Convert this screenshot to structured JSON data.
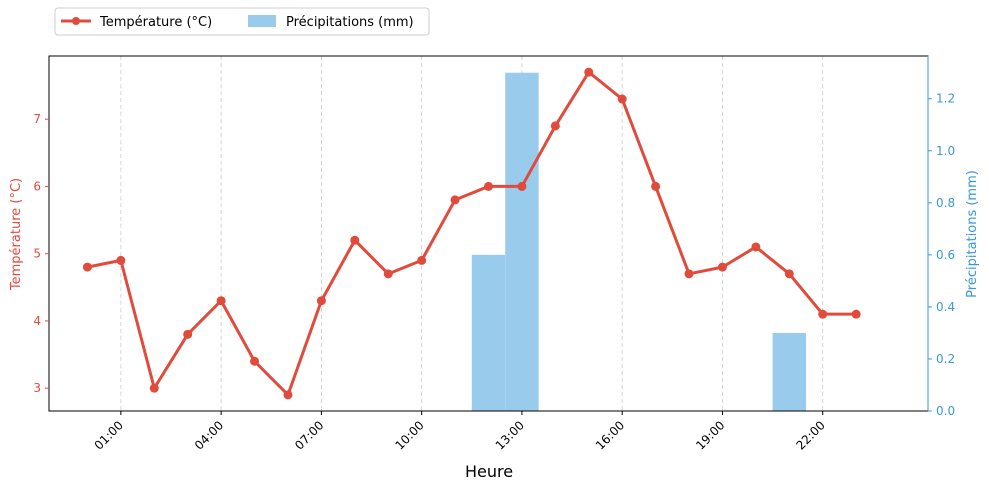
{
  "chart_data": {
    "type": "line",
    "xlabel": "Heure",
    "ylabel_left": "Température (°C)",
    "ylabel_right": "Précipitations (mm)",
    "x_tick_labels": [
      "01:00",
      "04:00",
      "07:00",
      "10:00",
      "13:00",
      "16:00",
      "19:00",
      "22:00"
    ],
    "x_tick_hours": [
      1,
      4,
      7,
      10,
      13,
      16,
      19,
      22
    ],
    "y_left_ticks": [
      3,
      4,
      5,
      6,
      7
    ],
    "y_right_ticks": [
      0.0,
      0.2,
      0.4,
      0.6,
      0.8,
      1.0,
      1.2
    ],
    "y_right_tick_labels": [
      "0.0",
      "0.2",
      "0.4",
      "0.6",
      "0.8",
      "1.0",
      "1.2"
    ],
    "ylim_left": [
      2.66,
      7.94
    ],
    "ylim_right": [
      0,
      1.3642
    ],
    "xlim": [
      -1.15,
      25.15
    ],
    "grid": "x-dashed",
    "legend": "top-left-outside",
    "series": [
      {
        "name": "Température (°C)",
        "kind": "line",
        "color": "#e04b3c",
        "x": [
          0,
          1,
          2,
          3,
          4,
          5,
          6,
          7,
          8,
          9,
          10,
          11,
          12,
          13,
          14,
          15,
          16,
          17,
          18,
          19,
          20,
          21,
          22,
          23
        ],
        "values": [
          4.8,
          4.9,
          3.0,
          3.8,
          4.3,
          3.4,
          2.9,
          4.3,
          5.2,
          4.7,
          4.9,
          5.8,
          6.0,
          6.0,
          6.9,
          7.7,
          7.3,
          6.0,
          4.7,
          4.8,
          5.1,
          4.7,
          4.1,
          4.1
        ]
      },
      {
        "name": "Précipitations (mm)",
        "kind": "bar",
        "color": "#99cbec",
        "bars": [
          {
            "x_start": 11.5,
            "x_end": 12.5,
            "value": 0.6
          },
          {
            "x_start": 12.5,
            "x_end": 13.5,
            "value": 1.3
          },
          {
            "x_start": 20.5,
            "x_end": 21.5,
            "value": 0.3
          }
        ]
      }
    ]
  }
}
